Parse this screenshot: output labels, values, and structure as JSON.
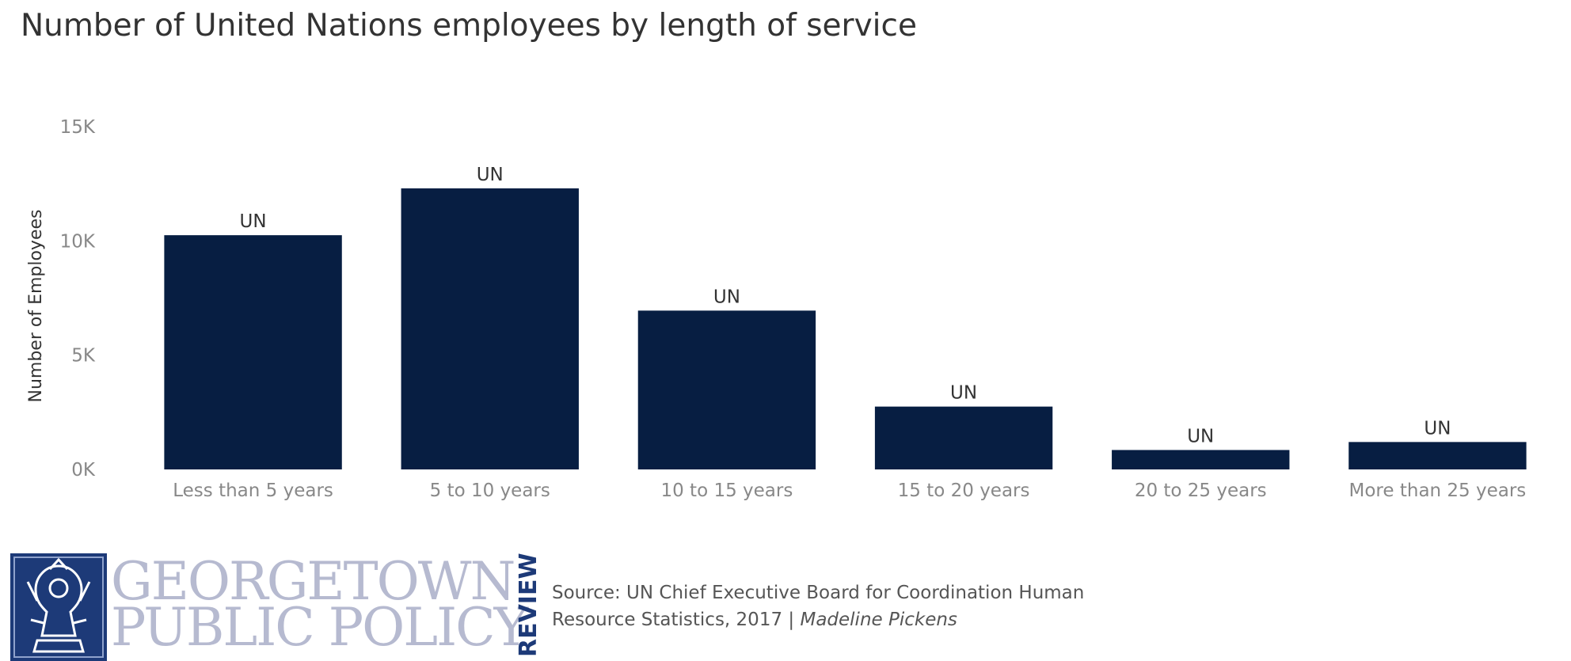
{
  "title": "Number of United Nations employees by length of service",
  "chart_data": {
    "type": "bar",
    "categories": [
      "Less than 5 years",
      "5 to 10 years",
      "10 to 15 years",
      "15 to 20 years",
      "20 to 25 years",
      "More than 25 years"
    ],
    "values": [
      10250,
      12300,
      6950,
      2750,
      850,
      1200
    ],
    "data_labels": [
      "UN",
      "UN",
      "UN",
      "UN",
      "UN",
      "UN"
    ],
    "ylabel": "Number of Employees",
    "xlabel": "",
    "ylim": [
      0,
      15000
    ],
    "yticks": [
      0,
      5000,
      10000,
      15000
    ],
    "ytick_labels": [
      "0K",
      "5K",
      "10K",
      "15K"
    ],
    "grid": false,
    "bar_color": "#071e42"
  },
  "footer": {
    "logo_line1": "GEORGETOWN",
    "logo_line2": "PUBLIC POLICY",
    "logo_review": "REVIEW",
    "source_line1": "Source: UN Chief Executive Board for Coordination Human",
    "source_line2_prefix": "Resource Statistics, 2017 | ",
    "author": "Madeline Pickens"
  },
  "colors": {
    "bar": "#071e42",
    "logo_navy": "#1d3a78",
    "logo_grey": "#b6bad0",
    "axis_text": "#888888"
  }
}
